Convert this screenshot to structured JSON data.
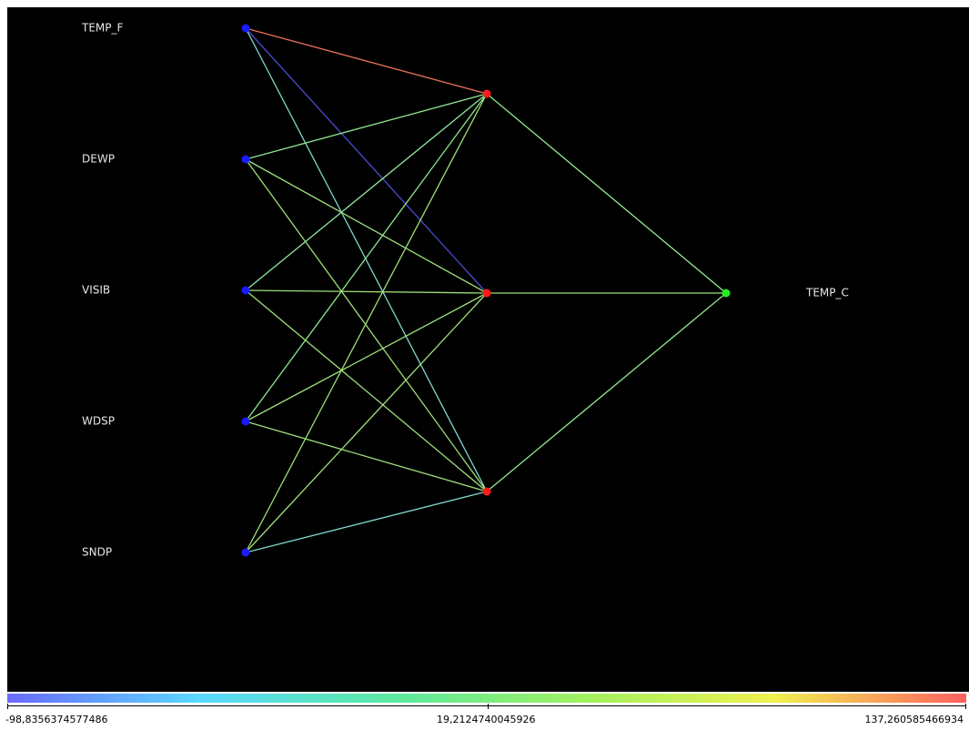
{
  "network": {
    "input_labels": [
      "TEMP_F",
      "DEWP",
      "VISIB",
      "WDSP",
      "SNDP"
    ],
    "hidden_count": 3,
    "output_labels": [
      "TEMP_C"
    ],
    "node_colors": {
      "input": "#1a1aff",
      "hidden": "#ff1a1a",
      "output": "#22ee22"
    },
    "edges_input_hidden": [
      {
        "from": 0,
        "to": 0,
        "color": "#e8735a"
      },
      {
        "from": 0,
        "to": 1,
        "color": "#4a4ad0"
      },
      {
        "from": 0,
        "to": 2,
        "color": "#7fd8d0"
      },
      {
        "from": 1,
        "to": 0,
        "color": "#8fe88f"
      },
      {
        "from": 1,
        "to": 1,
        "color": "#9ee07a"
      },
      {
        "from": 1,
        "to": 2,
        "color": "#9ee07a"
      },
      {
        "from": 2,
        "to": 0,
        "color": "#8fe8a0"
      },
      {
        "from": 2,
        "to": 1,
        "color": "#9ee07a"
      },
      {
        "from": 2,
        "to": 2,
        "color": "#9ee07a"
      },
      {
        "from": 3,
        "to": 0,
        "color": "#8fe88f"
      },
      {
        "from": 3,
        "to": 1,
        "color": "#9ee07a"
      },
      {
        "from": 3,
        "to": 2,
        "color": "#9ee07a"
      },
      {
        "from": 4,
        "to": 0,
        "color": "#9ee07a"
      },
      {
        "from": 4,
        "to": 1,
        "color": "#9ee07a"
      },
      {
        "from": 4,
        "to": 2,
        "color": "#7fd8d0"
      }
    ],
    "edges_hidden_output": [
      {
        "from": 0,
        "to": 0,
        "color": "#8fe88f"
      },
      {
        "from": 1,
        "to": 0,
        "color": "#9ee07a"
      },
      {
        "from": 2,
        "to": 0,
        "color": "#8fe88f"
      }
    ]
  },
  "legend": {
    "min_label": "-98,8356374577486",
    "mid_label": "19,2124740045926",
    "max_label": "137,260585466934",
    "gradient_colors": [
      "#6a6aff",
      "#5ad8ff",
      "#5ae8a0",
      "#a0f060",
      "#f0f050",
      "#ff6060"
    ]
  }
}
